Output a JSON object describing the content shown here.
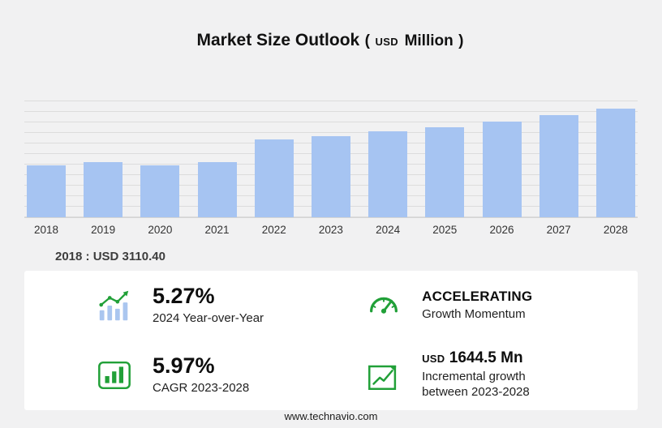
{
  "title": {
    "main": "Market Size Outlook",
    "open_paren": "(",
    "unit_small": "USD",
    "unit_large": "Million",
    "close_paren": ")"
  },
  "chart_data": {
    "type": "bar",
    "title": "Market Size Outlook (USD Million)",
    "categories": [
      "2018",
      "2019",
      "2020",
      "2021",
      "2022",
      "2023",
      "2024",
      "2025",
      "2026",
      "2027",
      "2028"
    ],
    "values": [
      3110.4,
      3290,
      3105,
      3300,
      4680,
      4885,
      5142,
      5420,
      5750,
      6130,
      6530
    ],
    "xlabel": "",
    "ylabel": "",
    "ylim": [
      0,
      7000
    ],
    "grid": true,
    "legend": false,
    "bar_color": "#a6c4f2",
    "annotations": [
      "2018 : USD 3110.40"
    ]
  },
  "baseline_note": "2018 : USD  3110.40",
  "stats": {
    "yoy": {
      "value": "5.27%",
      "label": "2024 Year-over-Year",
      "icon": "bar-trend-icon"
    },
    "momentum": {
      "value": "ACCELERATING",
      "label": "Growth Momentum",
      "icon": "speedometer-icon"
    },
    "cagr": {
      "value": "5.97%",
      "label": "CAGR 2023-2028",
      "icon": "framed-bars-icon"
    },
    "incremental": {
      "value_prefix": "USD",
      "value": "1644.5 Mn",
      "label": "Incremental growth between 2023-2028",
      "icon": "growth-arrow-icon"
    }
  },
  "footer": {
    "url": "www.technavio.com"
  },
  "colors": {
    "background": "#f1f1f2",
    "panel": "#ffffff",
    "bar": "#a6c4f2",
    "accent_green": "#21a038",
    "gridline": "#dcdcdc"
  }
}
